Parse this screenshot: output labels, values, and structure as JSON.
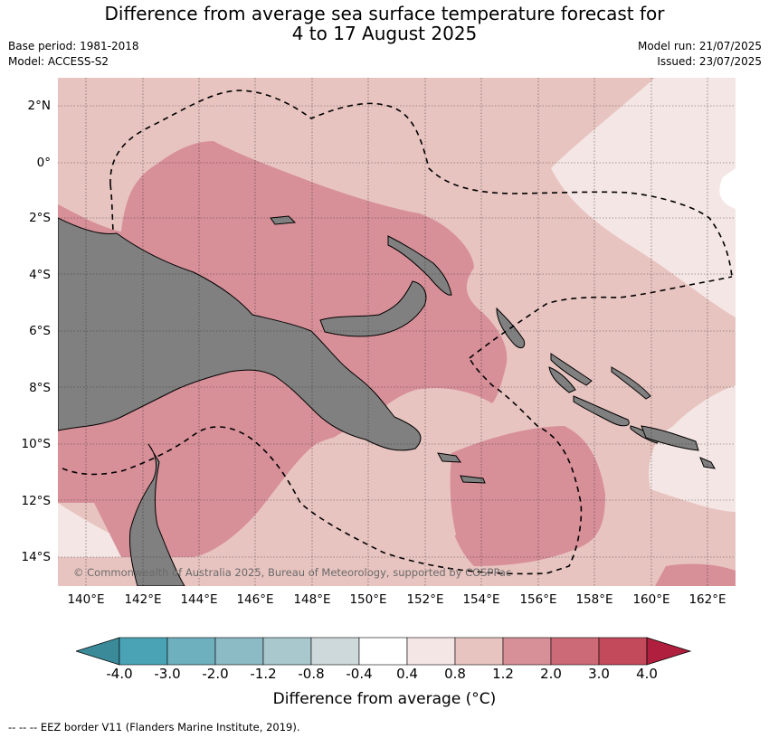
{
  "title_line1": "Difference from average sea surface temperature forecast for",
  "title_line2": "4 to 17 August 2025",
  "meta": {
    "base_period": "Base period: 1981-2018",
    "model": "Model: ACCESS-S2",
    "model_run": "Model run: 21/07/2025",
    "issued": "Issued: 23/07/2025"
  },
  "latitudes": [
    "2°N",
    "0°",
    "2°S",
    "4°S",
    "6°S",
    "8°S",
    "10°S",
    "12°S",
    "14°S"
  ],
  "longitudes": [
    "140°E",
    "142°E",
    "144°E",
    "146°E",
    "148°E",
    "150°E",
    "152°E",
    "154°E",
    "156°E",
    "158°E",
    "160°E",
    "162°E"
  ],
  "copyright": "© Commonwealth of Australia 2025, Bureau of Meteorology, supported by COSPPac",
  "colorbar": {
    "title": "Difference from average (°C)",
    "tick_labels": [
      "-4.0",
      "-3.0",
      "-2.0",
      "-1.2",
      "-0.8",
      "-0.4",
      "0.4",
      "0.8",
      "1.2",
      "2.0",
      "3.0",
      "4.0"
    ],
    "colors": [
      "#3a8a99",
      "#4aa3b5",
      "#6fb0bf",
      "#8cbac5",
      "#a9c8cd",
      "#cdd9db",
      "#ffffff",
      "#f4e6e4",
      "#e8c4c0",
      "#d78f98",
      "#cc6a77",
      "#c24a5b",
      "#b01f3d"
    ]
  },
  "land_color": "#808080",
  "footer": "-- -- -- EEZ border V11 (Flanders Marine Institute, 2019)."
}
